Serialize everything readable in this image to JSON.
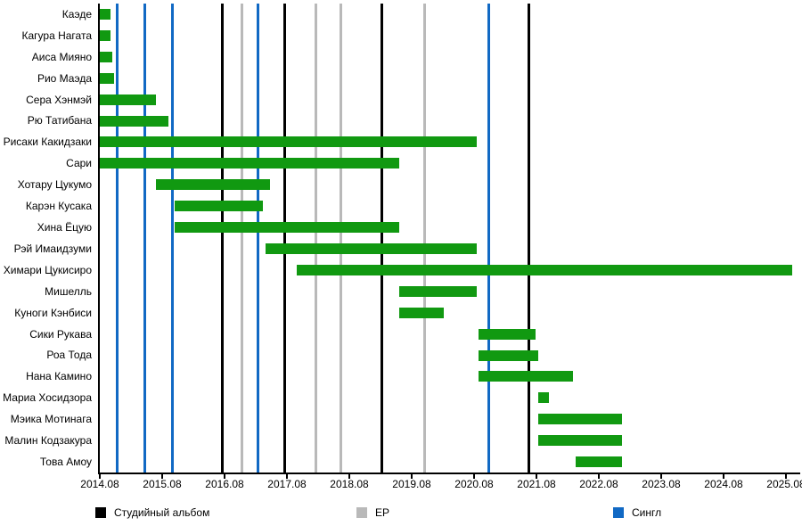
{
  "chart_data": {
    "type": "bar",
    "subtype": "timeline-gantt",
    "title": "",
    "x_axis": {
      "origin_label": "2014.08",
      "months_per_tick": 12,
      "tick_labels": [
        "2014.08",
        "2015.08",
        "2016.08",
        "2017.08",
        "2018.08",
        "2019.08",
        "2020.08",
        "2021.08",
        "2022.08",
        "2023.08",
        "2024.08",
        "2025.08"
      ],
      "xlim_months": [
        0,
        134.5
      ]
    },
    "members": [
      {
        "name": "Каэде",
        "start_month": 0,
        "end_month": 2.1
      },
      {
        "name": "Кагура Нагата",
        "start_month": 0,
        "end_month": 2.1
      },
      {
        "name": "Аиса Мияно",
        "start_month": 0,
        "end_month": 2.4
      },
      {
        "name": "Рио Маэда",
        "start_month": 0,
        "end_month": 2.7
      },
      {
        "name": "Сера Хэнмэй",
        "start_month": 0,
        "end_month": 10.8
      },
      {
        "name": "Рю Татибана",
        "start_month": 0,
        "end_month": 13.2
      },
      {
        "name": "Рисаки Какидзаки",
        "start_month": 0,
        "end_month": 72.5
      },
      {
        "name": "Сари",
        "start_month": 0,
        "end_month": 57.6
      },
      {
        "name": "Хотару Цукумо",
        "start_month": 10.8,
        "end_month": 32.7
      },
      {
        "name": "Карэн Кусака",
        "start_month": 14.4,
        "end_month": 31.4
      },
      {
        "name": "Хина Ёцую",
        "start_month": 14.4,
        "end_month": 57.6
      },
      {
        "name": "Рэй Имаидзуми",
        "start_month": 31.9,
        "end_month": 72.5
      },
      {
        "name": "Химари Цукисиро",
        "start_month": 37.9,
        "end_month": 133.2
      },
      {
        "name": "Мишелль",
        "start_month": 57.6,
        "end_month": 72.5
      },
      {
        "name": "Куноги Кэнбиси",
        "start_month": 57.6,
        "end_month": 66.2
      },
      {
        "name": "Сики Рукава",
        "start_month": 72.9,
        "end_month": 83.8
      },
      {
        "name": "Роа Тода",
        "start_month": 72.9,
        "end_month": 84.3
      },
      {
        "name": "Нана Камино",
        "start_month": 72.9,
        "end_month": 91.0
      },
      {
        "name": "Мариа Хосидзора",
        "start_month": 84.3,
        "end_month": 86.4
      },
      {
        "name": "Мэика Мотинага",
        "start_month": 84.3,
        "end_month": 100.5
      },
      {
        "name": "Малин Кодзакура",
        "start_month": 84.3,
        "end_month": 100.5
      },
      {
        "name": "Това Амоу",
        "start_month": 91.5,
        "end_month": 100.5
      }
    ],
    "events": [
      {
        "type": "single",
        "month": 3.4
      },
      {
        "type": "single",
        "month": 8.7
      },
      {
        "type": "single",
        "month": 13.9
      },
      {
        "type": "album",
        "month": 23.5
      },
      {
        "type": "ep",
        "month": 27.4
      },
      {
        "type": "single",
        "month": 30.5
      },
      {
        "type": "album",
        "month": 35.5
      },
      {
        "type": "ep",
        "month": 41.5
      },
      {
        "type": "ep",
        "month": 46.3
      },
      {
        "type": "album",
        "month": 54.2
      },
      {
        "type": "ep",
        "month": 62.4
      },
      {
        "type": "single",
        "month": 74.9
      },
      {
        "type": "album",
        "month": 82.5
      }
    ],
    "legend": [
      {
        "key": "album",
        "label": "Студийный альбом",
        "color": "#000000"
      },
      {
        "key": "ep",
        "label": "EP",
        "color": "#b9b9b9"
      },
      {
        "key": "single",
        "label": "Сингл",
        "color": "#1169c4"
      }
    ],
    "colors": {
      "member_bar": "#119911",
      "album": "#000000",
      "ep": "#b9b9b9",
      "single": "#1169c4",
      "axis": "#000000"
    }
  }
}
